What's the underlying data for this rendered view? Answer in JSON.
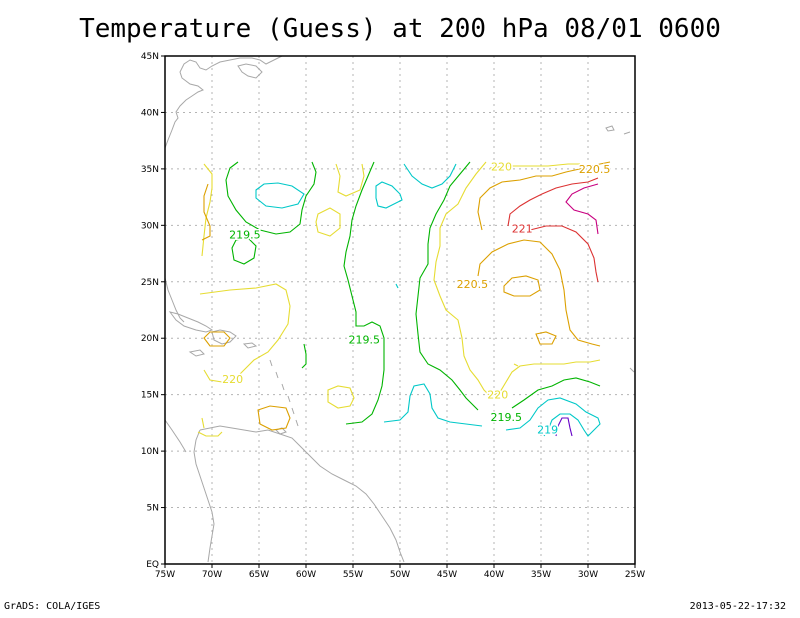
{
  "title": "Temperature (Guess) at 200 hPa 08/01 0600",
  "footer_left": "GrADS: COLA/IGES",
  "footer_right": "2013-05-22-17:32",
  "axes": {
    "lon_labels": [
      "75W",
      "70W",
      "65W",
      "60W",
      "55W",
      "50W",
      "45W",
      "40W",
      "35W",
      "30W",
      "25W"
    ],
    "lat_labels": [
      "EQ",
      "5N",
      "10N",
      "15N",
      "20N",
      "25N",
      "30N",
      "35N",
      "40N",
      "45N"
    ]
  },
  "contour_colors": {
    "219": "#00c8c8",
    "219.5": "#00b400",
    "220": "#e6dc32",
    "220.5": "#dca000",
    "221": "#dc3232",
    "221.5": "#c80080",
    "218.5": "#6400c8"
  },
  "contour_labels": [
    {
      "text": "219.5",
      "lon": -66.5,
      "lat": 29.2,
      "level": "219.5"
    },
    {
      "text": "219.5",
      "lon": -53.8,
      "lat": 19.9,
      "level": "219.5"
    },
    {
      "text": "219.5",
      "lon": -38.7,
      "lat": 13.0,
      "level": "219.5"
    },
    {
      "text": "219",
      "lon": -34.3,
      "lat": 11.9,
      "level": "219"
    },
    {
      "text": "220",
      "lon": -67.8,
      "lat": 16.4,
      "level": "220"
    },
    {
      "text": "220",
      "lon": -39.2,
      "lat": 35.2,
      "level": "220"
    },
    {
      "text": "220",
      "lon": -39.6,
      "lat": 15.0,
      "level": "220"
    },
    {
      "text": "220.5",
      "lon": -42.3,
      "lat": 24.8,
      "level": "220.5"
    },
    {
      "text": "220.5",
      "lon": -29.3,
      "lat": 35.0,
      "level": "220.5"
    },
    {
      "text": "221",
      "lon": -37.0,
      "lat": 29.7,
      "level": "221"
    }
  ]
}
